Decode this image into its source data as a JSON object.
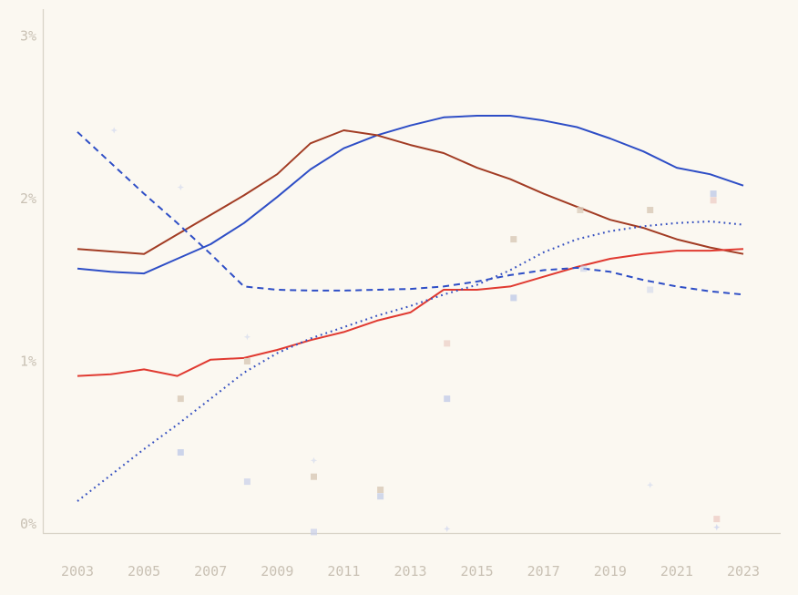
{
  "chart_data": {
    "type": "line",
    "title": "",
    "xlabel": "",
    "ylabel": "",
    "x": [
      2003,
      2004,
      2005,
      2006,
      2007,
      2008,
      2009,
      2010,
      2011,
      2012,
      2013,
      2014,
      2015,
      2016,
      2017,
      2018,
      2019,
      2020,
      2021,
      2022,
      2023
    ],
    "series": [
      {
        "name": "blue-solid",
        "style": "solid",
        "color": "#2e4ec6",
        "values": [
          1.57,
          1.55,
          1.54,
          1.63,
          1.72,
          1.85,
          2.01,
          2.18,
          2.31,
          2.39,
          2.45,
          2.5,
          2.51,
          2.51,
          2.48,
          2.44,
          2.37,
          2.29,
          2.19,
          2.15,
          2.08
        ]
      },
      {
        "name": "dark-red-solid",
        "style": "solid",
        "color": "#a23c24",
        "values": [
          1.69,
          1.675,
          1.66,
          1.78,
          1.9,
          2.02,
          2.15,
          2.34,
          2.42,
          2.39,
          2.33,
          2.28,
          2.19,
          2.12,
          2.03,
          1.95,
          1.87,
          1.82,
          1.75,
          1.7,
          1.66
        ]
      },
      {
        "name": "red-solid",
        "style": "solid",
        "color": "#e03a31",
        "values": [
          0.91,
          0.92,
          0.95,
          0.91,
          1.01,
          1.02,
          1.07,
          1.13,
          1.18,
          1.25,
          1.3,
          1.44,
          1.44,
          1.46,
          1.52,
          1.58,
          1.63,
          1.66,
          1.68,
          1.68,
          1.69
        ]
      },
      {
        "name": "blue-dashed",
        "style": "dashed",
        "color": "#2e4ec6",
        "values": [
          2.41,
          2.22,
          2.03,
          1.85,
          1.66,
          1.46,
          1.44,
          1.435,
          1.435,
          1.44,
          1.445,
          1.46,
          1.49,
          1.53,
          1.56,
          1.575,
          1.55,
          1.5,
          1.46,
          1.43,
          1.41
        ]
      },
      {
        "name": "blue-dotted",
        "style": "dotted",
        "color": "#3550c0",
        "values": [
          0.14,
          0.3,
          0.46,
          0.61,
          0.77,
          0.93,
          1.05,
          1.14,
          1.21,
          1.28,
          1.34,
          1.41,
          1.47,
          1.56,
          1.67,
          1.75,
          1.8,
          1.83,
          1.85,
          1.86,
          1.84
        ]
      }
    ],
    "scatter_markers": [
      {
        "year": 2004.1,
        "value": 2.42,
        "shape": "star",
        "color": "blue",
        "opacity": 0.55
      },
      {
        "year": 2006.1,
        "value": 2.07,
        "shape": "star",
        "color": "blue",
        "opacity": 0.5
      },
      {
        "year": 2008.1,
        "value": 1.15,
        "shape": "star",
        "color": "blue",
        "opacity": 0.5
      },
      {
        "year": 2008.1,
        "value": 1.0,
        "shape": "square",
        "color": "tan",
        "opacity": 0.9
      },
      {
        "year": 2006.1,
        "value": 0.77,
        "shape": "square",
        "color": "tan",
        "opacity": 0.9
      },
      {
        "year": 2006.1,
        "value": 0.44,
        "shape": "square",
        "color": "blue",
        "opacity": 0.9
      },
      {
        "year": 2008.1,
        "value": 0.26,
        "shape": "square",
        "color": "blue",
        "opacity": 0.7
      },
      {
        "year": 2010.1,
        "value": 0.39,
        "shape": "star",
        "color": "blue",
        "opacity": 0.5
      },
      {
        "year": 2010.1,
        "value": 0.29,
        "shape": "square",
        "color": "tan",
        "opacity": 0.9
      },
      {
        "year": 2012.1,
        "value": 0.21,
        "shape": "square",
        "color": "tan",
        "opacity": 0.9
      },
      {
        "year": 2012.1,
        "value": 0.17,
        "shape": "square",
        "color": "blue",
        "opacity": 0.8
      },
      {
        "year": 2010.1,
        "value": -0.05,
        "shape": "square",
        "color": "blue",
        "opacity": 0.7
      },
      {
        "year": 2014.1,
        "value": 1.11,
        "shape": "square",
        "color": "pink",
        "opacity": 0.8
      },
      {
        "year": 2014.1,
        "value": 0.77,
        "shape": "square",
        "color": "blue",
        "opacity": 0.85
      },
      {
        "year": 2014.1,
        "value": -0.03,
        "shape": "star",
        "color": "blue",
        "opacity": 0.6
      },
      {
        "year": 2016.1,
        "value": 1.75,
        "shape": "square",
        "color": "tan",
        "opacity": 0.9
      },
      {
        "year": 2016.1,
        "value": 1.39,
        "shape": "square",
        "color": "blue",
        "opacity": 0.9
      },
      {
        "year": 2018.2,
        "value": 1.57,
        "shape": "square",
        "color": "blue",
        "opacity": 0.6
      },
      {
        "year": 2018.1,
        "value": 1.93,
        "shape": "square",
        "color": "tan",
        "opacity": 0.8
      },
      {
        "year": 2020.2,
        "value": 1.93,
        "shape": "square",
        "color": "tan",
        "opacity": 0.9
      },
      {
        "year": 2020.2,
        "value": 1.44,
        "shape": "square",
        "color": "blue",
        "opacity": 0.5
      },
      {
        "year": 2020.2,
        "value": 0.24,
        "shape": "star",
        "color": "blue",
        "opacity": 0.5
      },
      {
        "year": 2022.1,
        "value": 2.03,
        "shape": "square",
        "color": "blue",
        "opacity": 0.9
      },
      {
        "year": 2022.1,
        "value": 1.99,
        "shape": "square",
        "color": "pink",
        "opacity": 0.85
      },
      {
        "year": 2022.2,
        "value": 0.03,
        "shape": "square",
        "color": "pink",
        "opacity": 0.9
      },
      {
        "year": 2022.2,
        "value": -0.02,
        "shape": "star",
        "color": "blue",
        "opacity": 0.7
      }
    ],
    "x_axis": {
      "tick_years": [
        2003,
        2005,
        2007,
        2009,
        2011,
        2013,
        2015,
        2017,
        2019,
        2021,
        2023
      ],
      "tick_labels": [
        "2003",
        "2005",
        "2007",
        "2009",
        "2011",
        "2013",
        "2015",
        "2017",
        "2019",
        "2021",
        "2023"
      ]
    },
    "y_axis": {
      "tick_values": [
        0,
        1,
        2,
        3
      ],
      "tick_labels": [
        "0%",
        "1%",
        "2%",
        "3%"
      ]
    },
    "xlim": [
      2003,
      2023
    ],
    "ylim": [
      0,
      3.2
    ],
    "grid": false,
    "legend": "none",
    "colors": {
      "background": "#fbf8f1",
      "axis_line": "#d9d4c8",
      "tick_text": "#c9c1b4",
      "blue": "#2e4ec6",
      "dark_red": "#a23c24",
      "red": "#e03a31",
      "marker_blue": "#c7cfe9",
      "marker_tan": "#dccdbd",
      "marker_pink": "#eed2cb",
      "marker_star_blue": "#c6cfee"
    }
  }
}
